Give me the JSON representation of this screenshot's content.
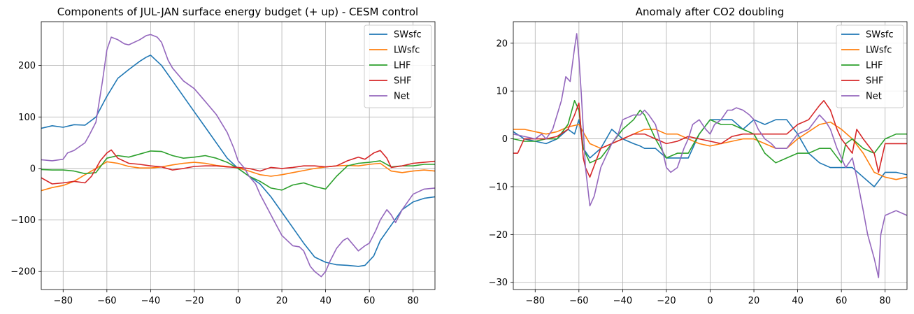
{
  "chart_data": [
    {
      "type": "line",
      "title": "Components of JUL-JAN surface energy budget (+ up) - CESM control",
      "xlabel": "",
      "ylabel": "",
      "xlim": [
        -90,
        90
      ],
      "ylim": [
        -235,
        285
      ],
      "xticks": [
        -80,
        -60,
        -40,
        -20,
        0,
        20,
        40,
        60,
        80
      ],
      "yticks": [
        -200,
        -100,
        0,
        100,
        200
      ],
      "grid": true,
      "legend": "top-right",
      "series": [
        {
          "name": "SWsfc",
          "color": "#1f77b4",
          "x": [
            -90,
            -85,
            -80,
            -75,
            -70,
            -65,
            -60,
            -55,
            -50,
            -45,
            -42,
            -40,
            -35,
            -30,
            -25,
            -20,
            -15,
            -10,
            -5,
            0,
            5,
            10,
            15,
            20,
            25,
            30,
            35,
            40,
            45,
            50,
            55,
            58,
            62,
            65,
            70,
            75,
            80,
            85,
            90
          ],
          "y": [
            78,
            83,
            80,
            85,
            84,
            100,
            140,
            175,
            192,
            208,
            216,
            220,
            200,
            170,
            140,
            110,
            80,
            50,
            20,
            0,
            -15,
            -30,
            -55,
            -85,
            -115,
            -145,
            -172,
            -182,
            -187,
            -188,
            -190,
            -188,
            -170,
            -140,
            -110,
            -80,
            -65,
            -58,
            -55
          ]
        },
        {
          "name": "LWsfc",
          "color": "#ff7f0e",
          "x": [
            -90,
            -85,
            -80,
            -75,
            -70,
            -65,
            -60,
            -55,
            -50,
            -45,
            -40,
            -35,
            -30,
            -25,
            -20,
            -15,
            -10,
            -5,
            0,
            5,
            10,
            15,
            20,
            25,
            30,
            35,
            40,
            45,
            50,
            55,
            60,
            65,
            70,
            75,
            80,
            85,
            90
          ],
          "y": [
            -43,
            -37,
            -33,
            -25,
            -12,
            0,
            13,
            10,
            4,
            1,
            1,
            3,
            7,
            10,
            12,
            10,
            6,
            4,
            1,
            -5,
            -12,
            -15,
            -12,
            -8,
            -4,
            0,
            3,
            5,
            6,
            5,
            8,
            10,
            -5,
            -8,
            -5,
            -3,
            -5
          ]
        },
        {
          "name": "LHF",
          "color": "#2ca02c",
          "x": [
            -90,
            -85,
            -80,
            -75,
            -70,
            -65,
            -60,
            -55,
            -50,
            -45,
            -40,
            -35,
            -30,
            -25,
            -20,
            -15,
            -10,
            -5,
            0,
            5,
            10,
            15,
            20,
            25,
            30,
            35,
            40,
            45,
            50,
            55,
            60,
            65,
            70,
            75,
            80,
            85,
            90
          ],
          "y": [
            -2,
            -3,
            -3,
            -5,
            -10,
            -8,
            20,
            25,
            22,
            28,
            34,
            33,
            25,
            20,
            22,
            25,
            20,
            12,
            0,
            -15,
            -25,
            -38,
            -42,
            -32,
            -28,
            -35,
            -40,
            -15,
            5,
            10,
            12,
            15,
            3,
            5,
            5,
            8,
            8
          ]
        },
        {
          "name": "SHF",
          "color": "#d62728",
          "x": [
            -90,
            -85,
            -80,
            -75,
            -70,
            -67,
            -63,
            -60,
            -58,
            -55,
            -50,
            -45,
            -40,
            -35,
            -30,
            -25,
            -20,
            -15,
            -10,
            -5,
            0,
            5,
            10,
            15,
            20,
            25,
            30,
            35,
            40,
            45,
            50,
            55,
            58,
            62,
            65,
            68,
            70,
            75,
            80,
            85,
            90
          ],
          "y": [
            -18,
            -30,
            -28,
            -25,
            -28,
            -15,
            15,
            30,
            36,
            20,
            10,
            8,
            5,
            3,
            -3,
            0,
            4,
            5,
            5,
            3,
            2,
            0,
            -5,
            2,
            0,
            2,
            5,
            5,
            3,
            5,
            15,
            22,
            18,
            30,
            35,
            20,
            2,
            5,
            10,
            12,
            14
          ]
        },
        {
          "name": "Net",
          "color": "#9467bd",
          "x": [
            -90,
            -85,
            -80,
            -78,
            -75,
            -70,
            -68,
            -65,
            -62,
            -60,
            -58,
            -55,
            -52,
            -50,
            -45,
            -42,
            -40,
            -37,
            -35,
            -32,
            -30,
            -25,
            -20,
            -15,
            -10,
            -5,
            -2,
            0,
            3,
            5,
            8,
            10,
            15,
            20,
            25,
            28,
            30,
            33,
            35,
            38,
            40,
            42,
            45,
            48,
            50,
            55,
            58,
            60,
            63,
            65,
            68,
            70,
            72,
            75,
            80,
            85,
            90
          ],
          "y": [
            17,
            15,
            18,
            30,
            35,
            50,
            65,
            90,
            170,
            230,
            255,
            250,
            242,
            240,
            250,
            258,
            260,
            255,
            245,
            210,
            195,
            170,
            155,
            130,
            105,
            70,
            40,
            15,
            0,
            -15,
            -30,
            -50,
            -90,
            -130,
            -150,
            -152,
            -160,
            -190,
            -200,
            -210,
            -200,
            -180,
            -155,
            -140,
            -135,
            -160,
            -150,
            -145,
            -120,
            -100,
            -80,
            -90,
            -105,
            -80,
            -50,
            -40,
            -38
          ]
        }
      ]
    },
    {
      "type": "line",
      "title": "Anomaly after CO2 doubling",
      "xlabel": "",
      "ylabel": "",
      "xlim": [
        -90,
        90
      ],
      "ylim": [
        -31.5,
        24.5
      ],
      "xticks": [
        -80,
        -60,
        -40,
        -20,
        0,
        20,
        40,
        60,
        80
      ],
      "yticks": [
        -30,
        -20,
        -10,
        0,
        10,
        20
      ],
      "grid": true,
      "legend": "top-right",
      "series": [
        {
          "name": "SWsfc",
          "color": "#1f77b4",
          "x": [
            -90,
            -85,
            -80,
            -75,
            -70,
            -65,
            -62,
            -60,
            -58,
            -55,
            -50,
            -45,
            -40,
            -35,
            -32,
            -30,
            -25,
            -20,
            -15,
            -10,
            -5,
            0,
            5,
            10,
            15,
            20,
            25,
            30,
            35,
            40,
            45,
            50,
            55,
            60,
            65,
            70,
            75,
            80,
            85,
            90
          ],
          "y": [
            1.5,
            0,
            -0.5,
            -1,
            0,
            2,
            1,
            4,
            -2,
            -4,
            -2,
            2,
            0,
            -1,
            -1.5,
            -2,
            -2,
            -4,
            -4,
            -4,
            1,
            4,
            4,
            4,
            2,
            4,
            3,
            4,
            4,
            1,
            -3,
            -5,
            -6,
            -6,
            -6,
            -8,
            -10,
            -7,
            -7,
            -7.5
          ]
        },
        {
          "name": "LWsfc",
          "color": "#ff7f0e",
          "x": [
            -90,
            -85,
            -80,
            -75,
            -70,
            -65,
            -60,
            -55,
            -50,
            -45,
            -40,
            -35,
            -30,
            -25,
            -20,
            -15,
            -10,
            -5,
            0,
            5,
            10,
            15,
            20,
            25,
            30,
            35,
            40,
            45,
            50,
            55,
            60,
            65,
            70,
            75,
            80,
            85,
            90
          ],
          "y": [
            2,
            2,
            1.5,
            1,
            1.5,
            2.5,
            3,
            -1,
            -2,
            -1,
            0,
            1,
            2,
            2,
            1,
            1,
            0,
            -1,
            -1.5,
            -1,
            -0.5,
            0,
            0,
            -1,
            -2,
            -2,
            0,
            1.5,
            3,
            3.5,
            2,
            0,
            -3,
            -7,
            -8,
            -8.5,
            -8
          ]
        },
        {
          "name": "LHF",
          "color": "#2ca02c",
          "x": [
            -90,
            -85,
            -80,
            -75,
            -70,
            -65,
            -62,
            -60,
            -58,
            -55,
            -50,
            -45,
            -40,
            -35,
            -32,
            -30,
            -25,
            -20,
            -15,
            -10,
            -5,
            0,
            5,
            10,
            15,
            20,
            25,
            30,
            35,
            40,
            45,
            50,
            55,
            60,
            62,
            65,
            70,
            75,
            80,
            85,
            90
          ],
          "y": [
            0,
            -0.5,
            -0.5,
            0,
            0,
            3,
            8,
            6,
            -2,
            -5,
            -4,
            -1,
            2,
            4,
            6,
            5,
            0,
            -4,
            -3,
            -3,
            1,
            4,
            3,
            3,
            2,
            1,
            -3,
            -5,
            -4,
            -3,
            -3,
            -2,
            -2,
            -5,
            -1,
            0,
            -2,
            -3,
            0,
            1,
            1
          ]
        },
        {
          "name": "SHF",
          "color": "#d62728",
          "x": [
            -90,
            -88,
            -85,
            -80,
            -75,
            -70,
            -65,
            -62,
            -60,
            -58,
            -57,
            -55,
            -50,
            -45,
            -40,
            -35,
            -30,
            -25,
            -20,
            -15,
            -10,
            -5,
            0,
            5,
            10,
            15,
            20,
            25,
            30,
            35,
            40,
            45,
            50,
            52,
            55,
            58,
            60,
            65,
            67,
            70,
            75,
            77,
            80,
            85,
            90
          ],
          "y": [
            -3,
            -3,
            0,
            0,
            0,
            0.5,
            2,
            5,
            7.5,
            -4,
            -6,
            -8,
            -2,
            -1,
            0,
            1,
            1,
            0,
            -1,
            -0.5,
            0.5,
            0,
            -0.5,
            -1,
            0.5,
            1,
            1,
            1,
            1,
            1,
            3,
            4,
            7,
            8,
            6,
            2,
            0,
            -3,
            2,
            0,
            -3,
            -7,
            -1,
            -1,
            -1
          ]
        },
        {
          "name": "Net",
          "color": "#9467bd",
          "x": [
            -90,
            -85,
            -80,
            -77,
            -75,
            -72,
            -70,
            -68,
            -66,
            -64,
            -62,
            -61,
            -60,
            -59,
            -57,
            -55,
            -53,
            -50,
            -45,
            -42,
            -40,
            -35,
            -32,
            -30,
            -28,
            -25,
            -22,
            -20,
            -18,
            -15,
            -12,
            -10,
            -8,
            -5,
            -2,
            0,
            2,
            5,
            8,
            10,
            12,
            15,
            18,
            20,
            22,
            25,
            28,
            30,
            35,
            40,
            45,
            50,
            53,
            55,
            58,
            60,
            62,
            65,
            67,
            70,
            72,
            75,
            77,
            78,
            80,
            85,
            90
          ],
          "y": [
            1,
            0.5,
            0,
            1,
            0,
            2,
            5,
            8,
            13,
            12,
            19,
            22,
            17,
            10,
            -6,
            -14,
            -12,
            -6,
            -1,
            1,
            4,
            5,
            5,
            6,
            5,
            3,
            -2,
            -6,
            -7,
            -6,
            -2,
            0,
            3,
            4,
            2,
            1,
            3,
            4,
            6,
            6,
            6.5,
            6,
            5,
            4,
            2,
            0,
            -1,
            -2,
            -2,
            1,
            2,
            5,
            3.5,
            2,
            -2,
            -4,
            -6,
            -4,
            -8,
            -15,
            -20,
            -25,
            -29,
            -20,
            -16,
            -15,
            -16
          ]
        }
      ]
    }
  ]
}
